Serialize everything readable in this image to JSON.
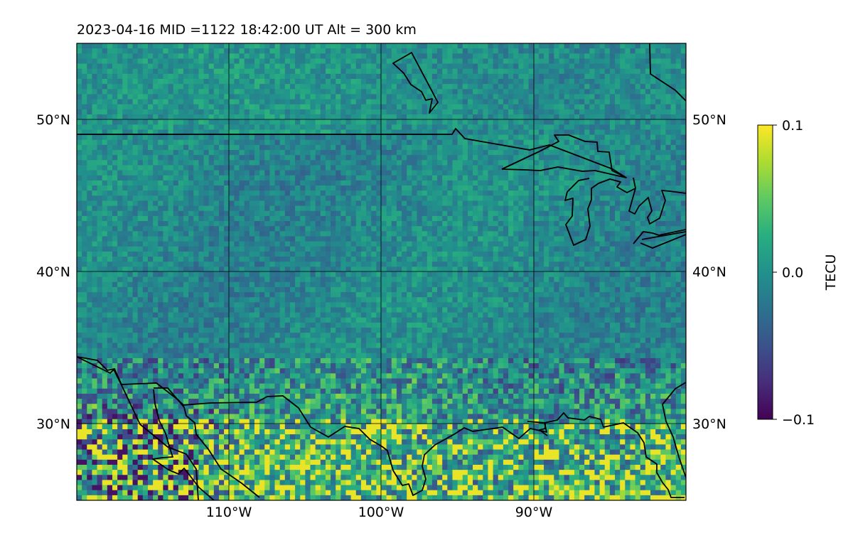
{
  "title": "2023-04-16  MID =1122    18:42:00  UT  Alt = 300 km",
  "map": {
    "lat_labels_left": [
      "50°N",
      "40°N",
      "30°N"
    ],
    "lat_labels_right": [
      "50°N",
      "40°N",
      "30°N"
    ],
    "lon_labels": [
      "110°W",
      "100°W",
      "90°W"
    ],
    "lat_values": [
      50,
      40,
      30
    ],
    "lon_values": [
      -110,
      -100,
      -90
    ],
    "extent": {
      "lon_min": -120,
      "lon_max": -80,
      "lat_min": 25,
      "lat_max": 55
    }
  },
  "colorbar": {
    "label": "TECU",
    "tick_labels": [
      "0.1",
      "0.0",
      "−0.1"
    ],
    "vmin": -0.1,
    "vmax": 0.1,
    "colormap": "viridis"
  }
}
